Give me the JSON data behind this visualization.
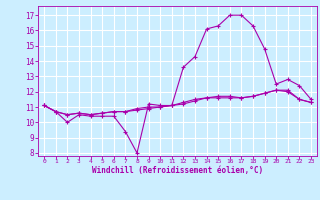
{
  "background_color": "#cceeff",
  "grid_color": "#ffffff",
  "line_color": "#aa00aa",
  "x_labels": [
    "0",
    "1",
    "2",
    "3",
    "4",
    "5",
    "6",
    "7",
    "8",
    "9",
    "10",
    "11",
    "12",
    "13",
    "14",
    "15",
    "16",
    "17",
    "18",
    "19",
    "20",
    "21",
    "22",
    "23"
  ],
  "xlabel": "Windchill (Refroidissement éolien,°C)",
  "ylim": [
    7.8,
    17.6
  ],
  "xlim": [
    -0.5,
    23.5
  ],
  "yticks": [
    8,
    9,
    10,
    11,
    12,
    13,
    14,
    15,
    16,
    17
  ],
  "series1": [
    11.1,
    10.7,
    10.0,
    10.5,
    10.4,
    10.4,
    10.4,
    9.4,
    8.0,
    11.2,
    11.1,
    11.1,
    13.6,
    14.3,
    16.1,
    16.3,
    17.0,
    17.0,
    16.3,
    14.8,
    12.5,
    12.8,
    12.4,
    11.5
  ],
  "series2": [
    11.1,
    10.7,
    10.5,
    10.6,
    10.5,
    10.6,
    10.7,
    10.7,
    10.8,
    10.9,
    11.0,
    11.1,
    11.3,
    11.5,
    11.6,
    11.6,
    11.6,
    11.6,
    11.7,
    11.9,
    12.1,
    12.1,
    11.5,
    11.3
  ],
  "series3": [
    11.1,
    10.7,
    10.5,
    10.6,
    10.5,
    10.6,
    10.7,
    10.7,
    10.9,
    11.0,
    11.0,
    11.1,
    11.2,
    11.4,
    11.6,
    11.7,
    11.7,
    11.6,
    11.7,
    11.9,
    12.1,
    12.0,
    11.5,
    11.3
  ]
}
